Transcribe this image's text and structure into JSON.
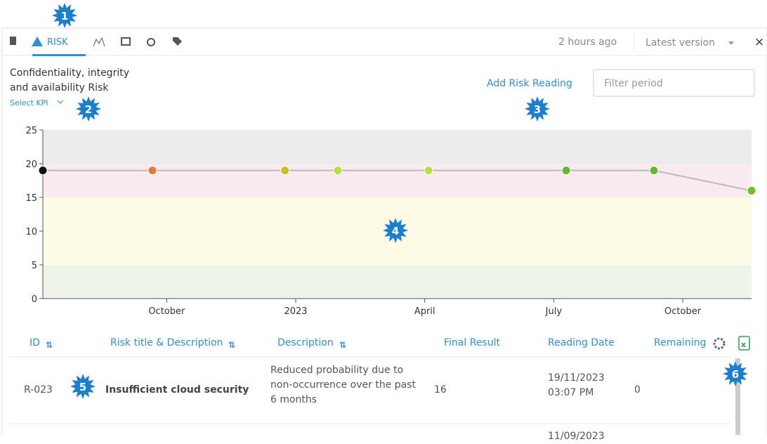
{
  "toolbar": {
    "tab": "RISK",
    "updated": "2 hours ago",
    "version": "Latest version",
    "close": "×"
  },
  "header": {
    "title_line1": "Confidentiality, integrity",
    "title_line2": "and availability Risk",
    "select_kpi": "Select KPI",
    "add_reading": "Add Risk Reading",
    "filter_placeholder": "Filter period"
  },
  "chart": {
    "type": "line",
    "x": [
      -5.88,
      -3.33,
      -0.25,
      0.98,
      3.09,
      6.29,
      8.33,
      10.6
    ],
    "values": [
      19,
      19,
      19,
      19,
      19,
      19,
      19,
      16
    ],
    "point_colors": [
      "#111111",
      "#e8792c",
      "#c9c21a",
      "#b5e23a",
      "#b5e23a",
      "#66b82b",
      "#66b82b",
      "#6fbf1f"
    ],
    "line_color": "#bbbbbb",
    "xlim": [
      -5.88,
      10.6
    ],
    "xticks": [
      {
        "value": -3,
        "label": "October"
      },
      {
        "value": 0,
        "label": "2023"
      },
      {
        "value": 3,
        "label": "April"
      },
      {
        "value": 6,
        "label": "July"
      },
      {
        "value": 9,
        "label": "October"
      }
    ],
    "ylim": [
      0,
      25
    ],
    "yticks": [
      0,
      5,
      10,
      15,
      20,
      25
    ],
    "bands": [
      {
        "from": 0,
        "to": 5,
        "color": "#eef4ea"
      },
      {
        "from": 5,
        "to": 15,
        "color": "#fdfbe6"
      },
      {
        "from": 15,
        "to": 20,
        "color": "#f9eaf0"
      },
      {
        "from": 20,
        "to": 25,
        "color": "#ececec"
      }
    ]
  },
  "table": {
    "columns": [
      "ID",
      "Risk title & Description",
      "Description",
      "Final Result",
      "Reading Date",
      "Remaining"
    ],
    "rows": [
      [
        "R-023",
        "Insufficient cloud security",
        "Reduced probability due to non-occurrence over the past 6 months",
        "16",
        "19/11/2023 03:07 PM",
        "0"
      ],
      [
        "",
        "",
        "",
        "",
        "11/09/2023",
        ""
      ]
    ]
  },
  "callouts": [
    "1",
    "2",
    "3",
    "4",
    "5",
    "6"
  ]
}
